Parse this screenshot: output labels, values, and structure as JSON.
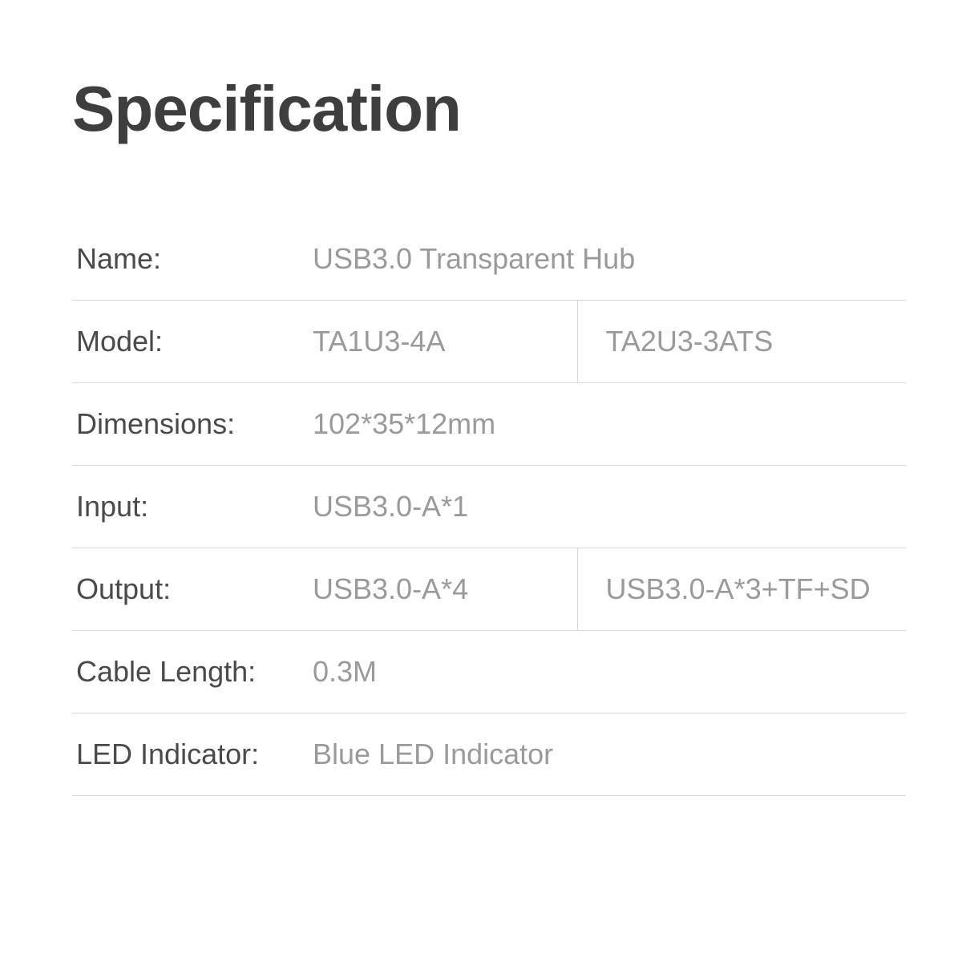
{
  "title": "Specification",
  "rows": {
    "name": {
      "label": "Name:",
      "value": "USB3.0 Transparent Hub"
    },
    "model": {
      "label": "Model:",
      "value1": "TA1U3-4A",
      "value2": "TA2U3-3ATS"
    },
    "dimensions": {
      "label": "Dimensions:",
      "value": "102*35*12mm"
    },
    "input": {
      "label": "Input:",
      "value": "USB3.0-A*1"
    },
    "output": {
      "label": "Output:",
      "value1": "USB3.0-A*4",
      "value2": "USB3.0-A*3+TF+SD"
    },
    "cableLength": {
      "label": "Cable Length:",
      "value": "0.3M"
    },
    "ledIndicator": {
      "label": "LED Indicator:",
      "value": "Blue LED Indicator"
    }
  },
  "style": {
    "background_color": "#ffffff",
    "title_color": "#3e3e3e",
    "title_fontsize": 80,
    "label_color": "#4a4a4a",
    "value_color": "#9a9a9a",
    "cell_fontsize": 36,
    "border_color": "#d8d8d8",
    "row_padding_v": 30,
    "label_col_width": 300,
    "split_left_width": 330
  }
}
